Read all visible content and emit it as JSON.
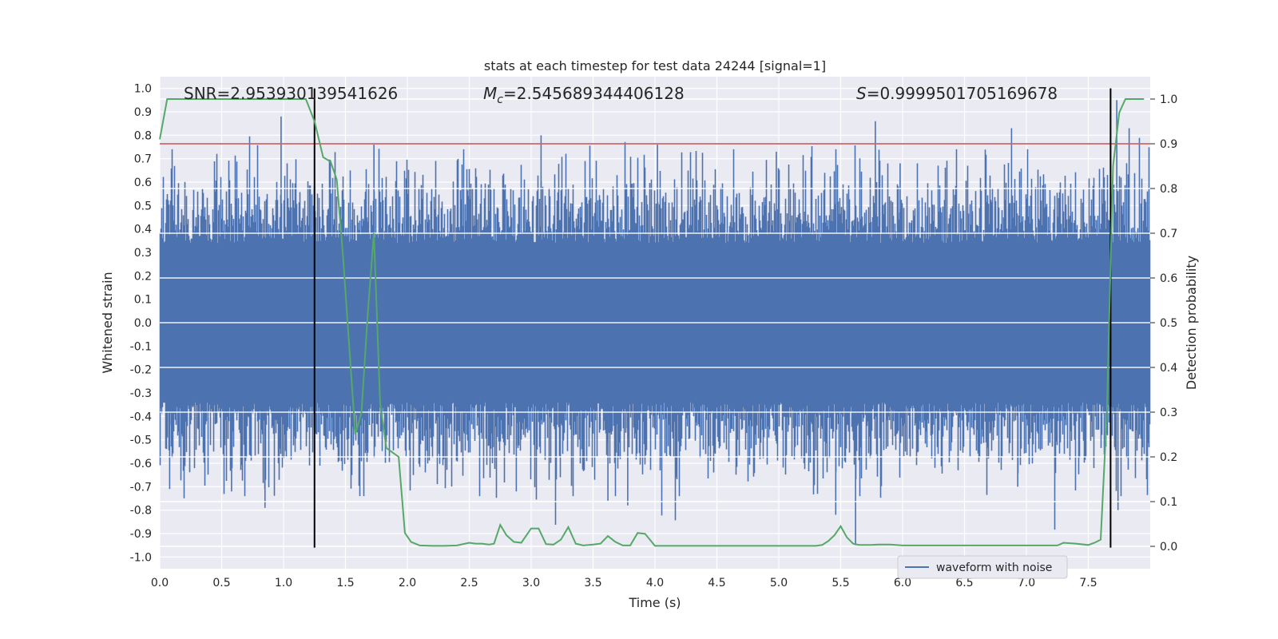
{
  "chart_data": {
    "type": "line",
    "title": "stats at each timestep for test data 24244 [signal=1]",
    "xlabel": "Time (s)",
    "ylabel_left": "Whitened strain",
    "ylabel_right": "Detection probability",
    "xlim": [
      0.0,
      8.0
    ],
    "ylim_left": [
      -1.05,
      1.05
    ],
    "ylim_right": [
      -0.05,
      1.05
    ],
    "x_ticks": [
      "0.0",
      "0.5",
      "1.0",
      "1.5",
      "2.0",
      "2.5",
      "3.0",
      "3.5",
      "4.0",
      "4.5",
      "5.0",
      "5.5",
      "6.0",
      "6.5",
      "7.0",
      "7.5"
    ],
    "y_left_ticks": [
      "1.0",
      "0.9",
      "0.8",
      "0.7",
      "0.6",
      "0.5",
      "0.4",
      "0.3",
      "0.2",
      "0.1",
      "0.0",
      "-0.1",
      "-0.2",
      "-0.3",
      "-0.4",
      "-0.5",
      "-0.6",
      "-0.7",
      "-0.8",
      "-0.9",
      "-1.0"
    ],
    "y_right_ticks": [
      "1.0",
      "0.9",
      "0.8",
      "0.7",
      "0.6",
      "0.5",
      "0.4",
      "0.3",
      "0.2",
      "0.1",
      "0.0"
    ],
    "grid": true,
    "annotations": {
      "snr": "SNR=2.953930139541626",
      "mc_symbol": "M",
      "mc_sub": "c",
      "mc_value": "=2.545689344406128",
      "s_symbol": "S",
      "s_value": "=0.9999501705169678"
    },
    "legend": {
      "entries": [
        "waveform with noise"
      ],
      "position": "lower-right"
    },
    "threshold": {
      "value_right_axis": 0.9,
      "color": "#c44e52"
    },
    "vertical_lines": [
      {
        "x": 1.25,
        "y_from": -0.96,
        "y_to": 1.0,
        "color": "#000000"
      },
      {
        "x": 7.68,
        "y_from": -0.96,
        "y_to": 1.0,
        "color": "#000000"
      }
    ],
    "series": [
      {
        "name": "waveform with noise",
        "axis": "left",
        "color": "#4c72b0",
        "description_type": "noise",
        "duration_s": 8.0,
        "typical_envelope": 0.4,
        "peaks": [
          {
            "x": 0.98,
            "y": 0.88
          },
          {
            "x": 0.85,
            "y": -0.79
          },
          {
            "x": 0.08,
            "y": -0.71
          },
          {
            "x": 0.58,
            "y": -0.72
          },
          {
            "x": 3.08,
            "y": 0.8
          },
          {
            "x": 5.78,
            "y": 0.86
          },
          {
            "x": 6.88,
            "y": 0.83
          },
          {
            "x": 7.73,
            "y": 0.95
          },
          {
            "x": 7.83,
            "y": 0.83
          },
          {
            "x": 5.62,
            "y": -0.95
          },
          {
            "x": 5.46,
            "y": -0.82
          },
          {
            "x": 3.78,
            "y": -0.78
          },
          {
            "x": 3.62,
            "y": -0.76
          },
          {
            "x": 1.73,
            "y": 0.76
          },
          {
            "x": 2.88,
            "y": -0.72
          },
          {
            "x": 7.74,
            "y": -0.8
          },
          {
            "x": 4.02,
            "y": 0.76
          },
          {
            "x": 4.98,
            "y": 0.73
          },
          {
            "x": 6.93,
            "y": -0.7
          },
          {
            "x": 5.98,
            "y": 0.68
          }
        ]
      },
      {
        "name": "detection probability",
        "axis": "right",
        "color": "#55a868",
        "x": [
          0.0,
          0.06,
          0.1,
          0.15,
          0.2,
          0.3,
          0.4,
          0.5,
          0.6,
          0.7,
          0.8,
          0.9,
          1.0,
          1.1,
          1.18,
          1.25,
          1.32,
          1.38,
          1.43,
          1.48,
          1.53,
          1.58,
          1.63,
          1.68,
          1.73,
          1.78,
          1.83,
          1.88,
          1.93,
          1.98,
          2.03,
          2.1,
          2.2,
          2.3,
          2.4,
          2.5,
          2.55,
          2.6,
          2.66,
          2.7,
          2.75,
          2.8,
          2.86,
          2.92,
          3.0,
          3.06,
          3.12,
          3.18,
          3.24,
          3.3,
          3.36,
          3.42,
          3.5,
          3.56,
          3.62,
          3.68,
          3.74,
          3.8,
          3.86,
          3.92,
          4.0,
          4.1,
          4.2,
          4.3,
          4.4,
          4.5,
          4.6,
          4.7,
          4.8,
          4.9,
          5.0,
          5.1,
          5.2,
          5.3,
          5.35,
          5.4,
          5.45,
          5.5,
          5.55,
          5.6,
          5.65,
          5.7,
          5.75,
          5.8,
          5.9,
          6.0,
          6.1,
          6.2,
          6.3,
          6.4,
          6.5,
          6.6,
          6.7,
          6.8,
          6.9,
          7.0,
          7.1,
          7.2,
          7.25,
          7.3,
          7.4,
          7.5,
          7.55,
          7.6,
          7.65,
          7.7,
          7.75,
          7.8,
          7.85,
          7.9,
          7.95
        ],
        "y": [
          0.91,
          1.0,
          1.0,
          1.0,
          1.0,
          1.0,
          1.0,
          1.0,
          1.0,
          1.0,
          1.0,
          1.0,
          1.0,
          1.0,
          1.0,
          0.95,
          0.87,
          0.86,
          0.82,
          0.65,
          0.45,
          0.25,
          0.3,
          0.52,
          0.7,
          0.32,
          0.22,
          0.21,
          0.2,
          0.03,
          0.01,
          0.002,
          0.001,
          0.001,
          0.002,
          0.008,
          0.006,
          0.006,
          0.004,
          0.006,
          0.048,
          0.025,
          0.01,
          0.008,
          0.04,
          0.04,
          0.005,
          0.004,
          0.015,
          0.043,
          0.006,
          0.002,
          0.004,
          0.006,
          0.023,
          0.01,
          0.002,
          0.002,
          0.03,
          0.028,
          0.001,
          0.001,
          0.001,
          0.001,
          0.001,
          0.001,
          0.001,
          0.001,
          0.001,
          0.001,
          0.001,
          0.001,
          0.001,
          0.001,
          0.003,
          0.012,
          0.025,
          0.045,
          0.02,
          0.006,
          0.003,
          0.003,
          0.003,
          0.004,
          0.004,
          0.002,
          0.002,
          0.002,
          0.002,
          0.002,
          0.002,
          0.002,
          0.002,
          0.002,
          0.002,
          0.002,
          0.002,
          0.002,
          0.002,
          0.008,
          0.006,
          0.003,
          0.008,
          0.015,
          0.3,
          0.85,
          0.97,
          1.0,
          1.0,
          1.0,
          1.0
        ]
      }
    ]
  }
}
